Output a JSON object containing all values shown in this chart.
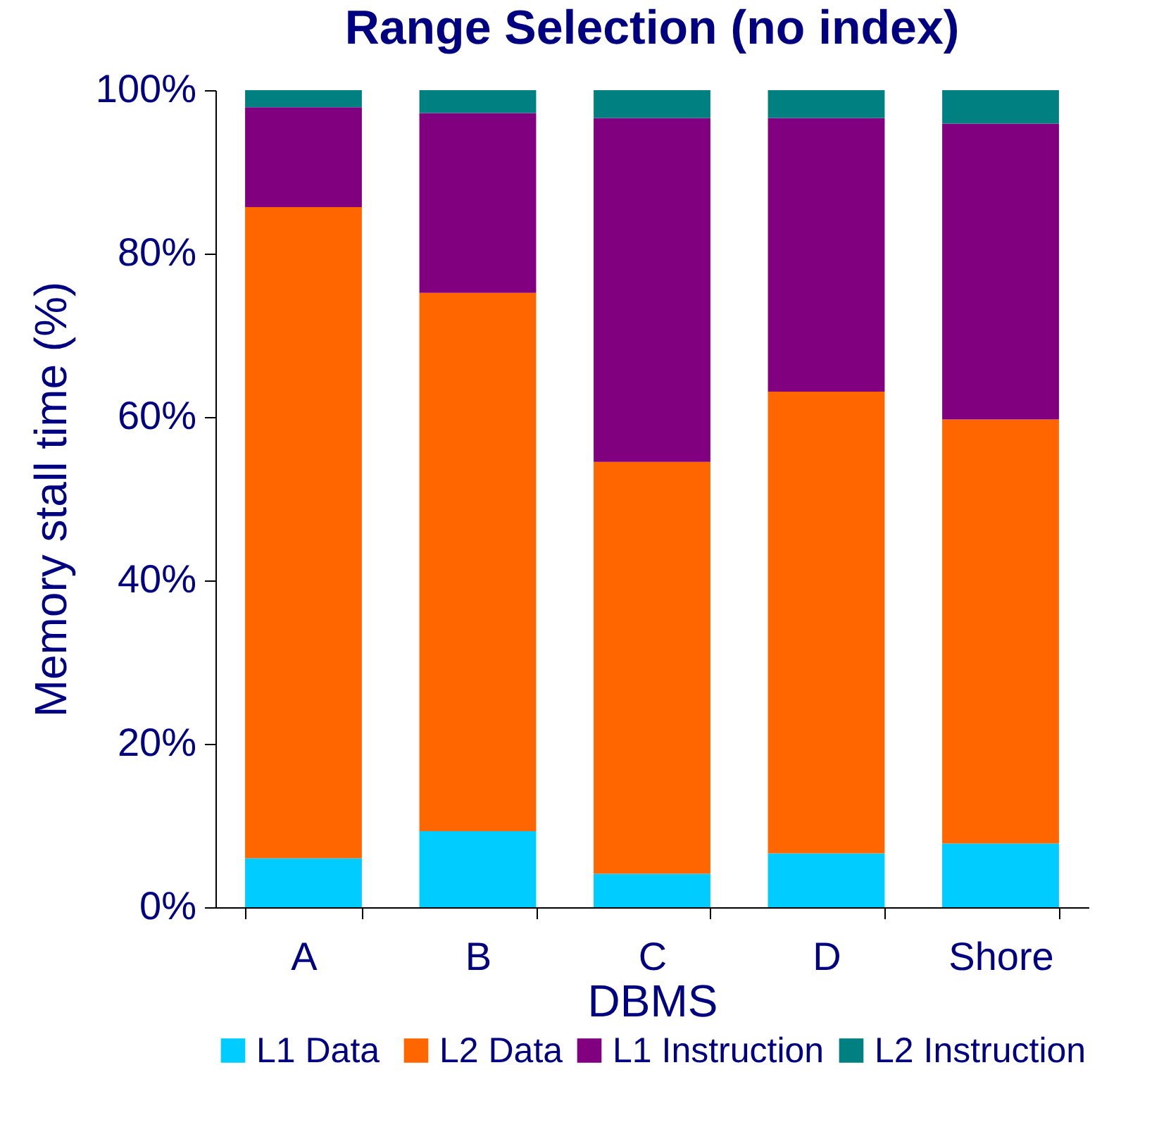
{
  "chart_data": {
    "type": "bar",
    "title": "Range Selection (no index)",
    "xlabel": "DBMS",
    "ylabel": "Memory stall time (%)",
    "categories": [
      "A",
      "B",
      "C",
      "D",
      "Shore"
    ],
    "stacked": true,
    "series": [
      {
        "name": "L1  Data",
        "color": "#00ccff",
        "values": [
          6.0,
          9.3,
          4.1,
          6.6,
          7.8
        ]
      },
      {
        "name": "L2 Data",
        "color": "#ff6600",
        "values": [
          79.7,
          65.9,
          50.4,
          56.5,
          51.9
        ]
      },
      {
        "name": "L1 Instruction",
        "color": "#800080",
        "values": [
          12.2,
          22.0,
          42.1,
          33.5,
          36.2
        ]
      },
      {
        "name": "L2 Instruction",
        "color": "#008080",
        "values": [
          2.1,
          2.8,
          3.4,
          3.4,
          4.1
        ]
      }
    ],
    "ylim": [
      0,
      100
    ],
    "yticks": [
      {
        "value": 0,
        "label": "0%"
      },
      {
        "value": 20,
        "label": "20%"
      },
      {
        "value": 40,
        "label": "40%"
      },
      {
        "value": 60,
        "label": "60%"
      },
      {
        "value": 80,
        "label": "80%"
      },
      {
        "value": 100,
        "label": "100%"
      }
    ],
    "grid": false,
    "legend": "bottom"
  }
}
